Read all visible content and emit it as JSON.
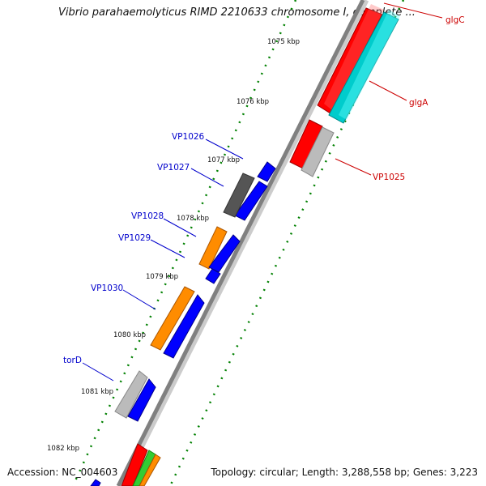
{
  "title": "Vibrio parahaemolyticus RIMD 2210633 chromosome I, complete ...",
  "footer": {
    "accession": "Accession: NC_004603",
    "summary": "Topology: circular; Length: 3,288,558 bp; Genes: 3,223"
  },
  "scale_ticks": [
    "1075 kbp",
    "1076 kbp",
    "1077 kbp",
    "1078 kbp",
    "1079 kbp",
    "1080 kbp",
    "1081 kbp",
    "1082 kbp"
  ],
  "genes_forward": [
    {
      "label": "glgC",
      "color": "#ff0000"
    },
    {
      "label": "glgA",
      "color": "#ff0000"
    },
    {
      "label": "VP1025",
      "color": "#ff0000"
    }
  ],
  "genes_reverse": [
    {
      "label": "VP1026",
      "color": "#0000ff"
    },
    {
      "label": "VP1027",
      "color": "#0000ff"
    },
    {
      "label": "VP1028",
      "color": "#0000ff"
    },
    {
      "label": "VP1029",
      "color": "#0000ff"
    },
    {
      "label": "VP1030",
      "color": "#0000ff"
    },
    {
      "label": "torD",
      "color": "#0000ff"
    }
  ],
  "colors": {
    "forward_label": "#cc0000",
    "reverse_label": "#0000cc",
    "backbone": "#808080",
    "tick": "#008000",
    "cyan": "#00cccc",
    "orange": "#ff8c00",
    "dark_gray": "#555555",
    "light_gray": "#bbbbbb",
    "green": "#33cc33"
  }
}
